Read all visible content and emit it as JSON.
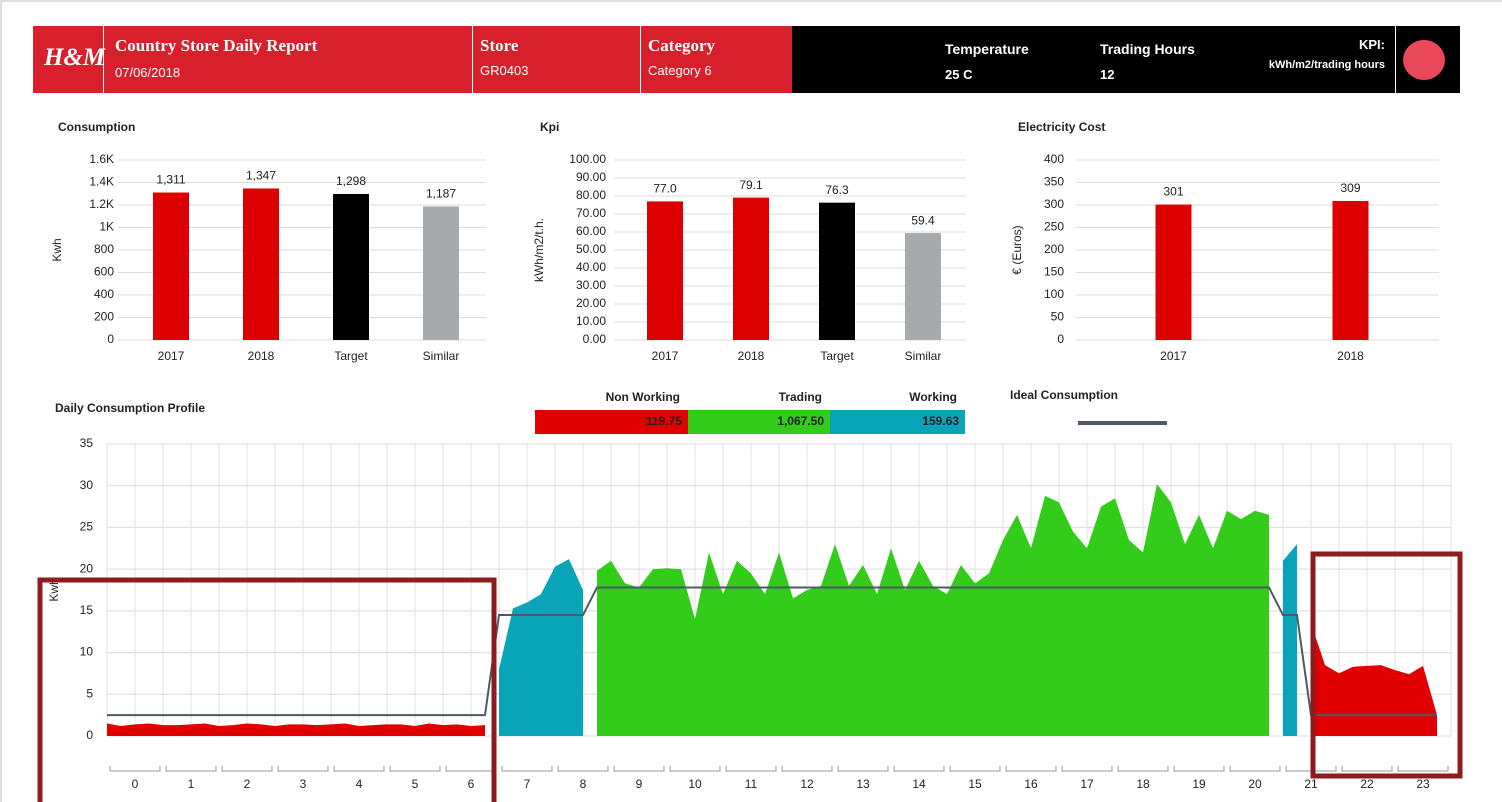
{
  "header": {
    "logo": "H&M",
    "title": "Country Store Daily Report",
    "date": "07/06/2018",
    "store_label": "Store",
    "store": "GR0403",
    "category_label": "Category",
    "category": "Category 6",
    "temperature_label": "Temperature",
    "temperature": "25 C",
    "trading_hours_label": "Trading Hours",
    "trading_hours": "12",
    "kpi_label": "KPI:",
    "kpi_unit": "kWh/m2/trading hours"
  },
  "chart_data": [
    {
      "type": "bar",
      "title": "Consumption",
      "y_label": "Kwh",
      "categories": [
        "2017",
        "2018",
        "Target",
        "Similar"
      ],
      "values": [
        1311,
        1347,
        1298,
        1187
      ],
      "value_labels": [
        "1,311",
        "1,347",
        "1,298",
        "1,187"
      ],
      "colors": [
        "#dd0000",
        "#dd0000",
        "#000000",
        "#a6aaad"
      ],
      "ylim": [
        0,
        1600
      ],
      "yticks": [
        0,
        200,
        400,
        600,
        800,
        {
          "value": 1000,
          "label": "1K"
        },
        {
          "value": 1200,
          "label": "1.2K"
        },
        {
          "value": 1400,
          "label": "1.4K"
        },
        {
          "value": 1600,
          "label": "1.6K"
        }
      ],
      "grid": true
    },
    {
      "type": "bar",
      "title": "Kpi",
      "y_label": "kWh/m2/t.h.",
      "categories": [
        "2017",
        "2018",
        "Target",
        "Similar"
      ],
      "values": [
        77,
        79.1,
        76.3,
        59.4
      ],
      "value_labels": [
        "77.0",
        "79.1",
        "76.3",
        "59.4"
      ],
      "colors": [
        "#dd0000",
        "#dd0000",
        "#000000",
        "#a6aaad"
      ],
      "ylim": [
        0,
        100
      ],
      "yticks": [
        {
          "value": 0,
          "label": "0.00"
        },
        {
          "value": 10,
          "label": "10.00"
        },
        {
          "value": 20,
          "label": "20.00"
        },
        {
          "value": 30,
          "label": "30.00"
        },
        {
          "value": 40,
          "label": "40.00"
        },
        {
          "value": 50,
          "label": "50.00"
        },
        {
          "value": 60,
          "label": "60.00"
        },
        {
          "value": 70,
          "label": "70.00"
        },
        {
          "value": 80,
          "label": "80.00"
        },
        {
          "value": 90,
          "label": "90.00"
        },
        {
          "value": 100,
          "label": "100.00"
        }
      ],
      "grid": true
    },
    {
      "type": "bar",
      "title": "Electricity Cost",
      "y_label": "€ (Euros)",
      "categories": [
        "2017",
        "2018"
      ],
      "values": [
        301,
        309
      ],
      "colors": [
        "#dd0000",
        "#dd0000"
      ],
      "ylim": [
        0,
        400
      ],
      "yticks": [
        0,
        50,
        100,
        150,
        200,
        250,
        300,
        350,
        400
      ],
      "grid": true
    },
    {
      "type": "area",
      "title": "Daily Consumption Profile",
      "y_label": "Kwh",
      "categories": [
        "0",
        "1",
        "2",
        "3",
        "4",
        "5",
        "6",
        "7",
        "8",
        "9",
        "10",
        "11",
        "12",
        "13",
        "14",
        "15",
        "16",
        "17",
        "18",
        "19",
        "20",
        "21",
        "22",
        "23"
      ],
      "x": [
        0,
        0.25,
        0.5,
        0.75,
        1,
        1.25,
        1.5,
        1.75,
        2,
        2.25,
        2.5,
        2.75,
        3,
        3.25,
        3.5,
        3.75,
        4,
        4.25,
        4.5,
        4.75,
        5,
        5.25,
        5.5,
        5.75,
        6,
        6.25,
        6.5,
        6.75,
        7,
        7.25,
        7.5,
        7.75,
        8,
        8.25,
        8.5,
        8.75,
        9,
        9.25,
        9.5,
        9.75,
        10,
        10.25,
        10.5,
        10.75,
        11,
        11.25,
        11.5,
        11.75,
        12,
        12.25,
        12.5,
        12.75,
        13,
        13.25,
        13.5,
        13.75,
        14,
        14.25,
        14.5,
        14.75,
        15,
        15.25,
        15.5,
        15.75,
        16,
        16.25,
        16.5,
        16.75,
        17,
        17.25,
        17.5,
        17.75,
        18,
        18.25,
        18.5,
        18.75,
        19,
        19.25,
        19.5,
        19.75,
        20,
        20.25,
        20.5,
        20.75,
        21,
        21.25,
        21.5,
        21.75,
        22,
        22.25,
        22.5,
        22.75,
        23,
        23.25,
        23.5,
        23.75
      ],
      "xlim": [
        0,
        24
      ],
      "ylim": [
        0,
        35
      ],
      "yticks": [
        0,
        5,
        10,
        15,
        20,
        25,
        30,
        35
      ],
      "grid": true,
      "series": [
        {
          "name": "Non Working",
          "color": "#e00000",
          "total": 119.75,
          "total_label": "119.75",
          "values": [
            1.5,
            1.2,
            1.4,
            1.5,
            1.3,
            1.3,
            1.4,
            1.5,
            1.2,
            1.3,
            1.5,
            1.4,
            1.2,
            1.4,
            1.4,
            1.3,
            1.4,
            1.5,
            1.2,
            1.3,
            1.4,
            1.4,
            1.2,
            1.5,
            1.3,
            1.4,
            1.2,
            1.3,
            null,
            null,
            null,
            null,
            null,
            null,
            null,
            null,
            null,
            null,
            null,
            null,
            null,
            null,
            null,
            null,
            null,
            null,
            null,
            null,
            null,
            null,
            null,
            null,
            null,
            null,
            null,
            null,
            null,
            null,
            null,
            null,
            null,
            null,
            null,
            null,
            null,
            null,
            null,
            null,
            null,
            null,
            null,
            null,
            null,
            null,
            null,
            null,
            null,
            null,
            null,
            null,
            null,
            null,
            null,
            null,
            null,
            null,
            13.5,
            8.5,
            7.5,
            8.3,
            8.4,
            8.5,
            7.9,
            7.4,
            8.4,
            2.5
          ]
        },
        {
          "name": "Trading",
          "color": "#33cc1a",
          "total": 1067.5,
          "total_label": "1,067.50",
          "values": [
            null,
            null,
            null,
            null,
            null,
            null,
            null,
            null,
            null,
            null,
            null,
            null,
            null,
            null,
            null,
            null,
            null,
            null,
            null,
            null,
            null,
            null,
            null,
            null,
            null,
            null,
            null,
            null,
            null,
            null,
            null,
            null,
            null,
            null,
            null,
            19.8,
            21,
            18.3,
            17.8,
            20,
            20.1,
            20,
            14,
            22,
            17,
            21,
            19.5,
            17,
            22,
            16.5,
            17.5,
            18,
            23,
            18,
            20.5,
            17,
            22.5,
            17.5,
            21,
            18,
            17,
            20.5,
            18.3,
            19.5,
            23.5,
            26.5,
            22.5,
            28.8,
            28,
            24.5,
            22.5,
            27.5,
            28.5,
            23.5,
            22,
            30.2,
            28,
            23,
            26.5,
            22.5,
            27,
            26,
            27,
            26.5,
            null,
            null,
            null,
            null,
            null,
            null,
            null,
            null,
            null,
            null,
            null,
            null
          ]
        },
        {
          "name": "Working",
          "color": "#0aa4b8",
          "total": 159.63,
          "total_label": "159.63",
          "values": [
            null,
            null,
            null,
            null,
            null,
            null,
            null,
            null,
            null,
            null,
            null,
            null,
            null,
            null,
            null,
            null,
            null,
            null,
            null,
            null,
            null,
            null,
            null,
            null,
            null,
            null,
            null,
            null,
            8,
            15.3,
            16,
            17,
            20.3,
            21.2,
            17.5,
            null,
            null,
            null,
            null,
            null,
            null,
            null,
            null,
            null,
            null,
            null,
            null,
            null,
            null,
            null,
            null,
            null,
            null,
            null,
            null,
            null,
            null,
            null,
            null,
            null,
            null,
            null,
            null,
            null,
            null,
            null,
            null,
            null,
            null,
            null,
            null,
            null,
            null,
            null,
            null,
            null,
            null,
            null,
            null,
            null,
            null,
            null,
            null,
            null,
            21,
            23,
            null,
            null,
            null,
            null,
            null,
            null,
            null,
            null,
            null,
            null
          ]
        },
        {
          "name": "Ideal Consumption",
          "color": "#4d5a66",
          "line": true,
          "values": [
            2.5,
            2.5,
            2.5,
            2.5,
            2.5,
            2.5,
            2.5,
            2.5,
            2.5,
            2.5,
            2.5,
            2.5,
            2.5,
            2.5,
            2.5,
            2.5,
            2.5,
            2.5,
            2.5,
            2.5,
            2.5,
            2.5,
            2.5,
            2.5,
            2.5,
            2.5,
            2.5,
            2.5,
            14.5,
            14.5,
            14.5,
            14.5,
            14.5,
            14.5,
            14.5,
            17.8,
            17.8,
            17.8,
            17.8,
            17.8,
            17.8,
            17.8,
            17.8,
            17.8,
            17.8,
            17.8,
            17.8,
            17.8,
            17.8,
            17.8,
            17.8,
            17.8,
            17.8,
            17.8,
            17.8,
            17.8,
            17.8,
            17.8,
            17.8,
            17.8,
            17.8,
            17.8,
            17.8,
            17.8,
            17.8,
            17.8,
            17.8,
            17.8,
            17.8,
            17.8,
            17.8,
            17.8,
            17.8,
            17.8,
            17.8,
            17.8,
            17.8,
            17.8,
            17.8,
            17.8,
            17.8,
            17.8,
            17.8,
            17.8,
            14.5,
            14.5,
            2.5,
            2.5,
            2.5,
            2.5,
            2.5,
            2.5,
            2.5,
            2.5,
            2.5,
            2.5
          ]
        }
      ]
    }
  ]
}
